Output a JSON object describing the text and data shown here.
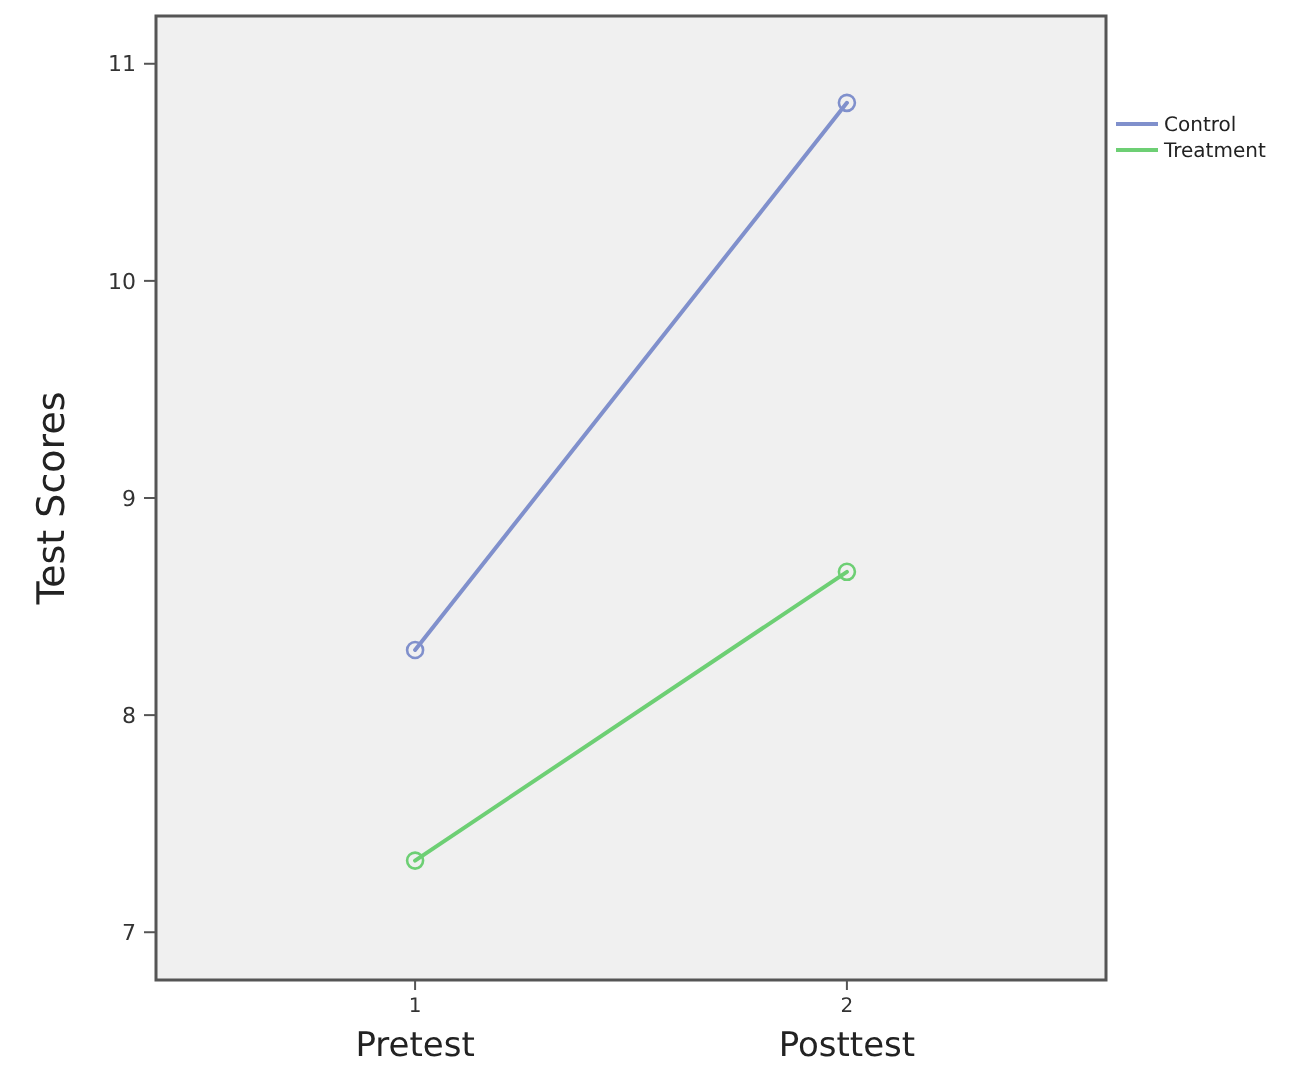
{
  "chart_data": {
    "type": "line",
    "ylabel": "Test Scores",
    "categories": [
      "1",
      "2"
    ],
    "series": [
      {
        "name": "Control",
        "color": "#8090cc",
        "values": [
          8.3,
          10.82
        ]
      },
      {
        "name": "Treatment",
        "color": "#6dcf74",
        "values": [
          7.33,
          8.66
        ]
      }
    ],
    "ylim": [
      6.78,
      11.22
    ],
    "yticks": [
      7,
      8,
      9,
      10,
      11
    ],
    "grid": false,
    "legend": "right",
    "marker": "circle",
    "line_style": "solid",
    "annotations": [
      "Pretest",
      "Posttest"
    ]
  }
}
